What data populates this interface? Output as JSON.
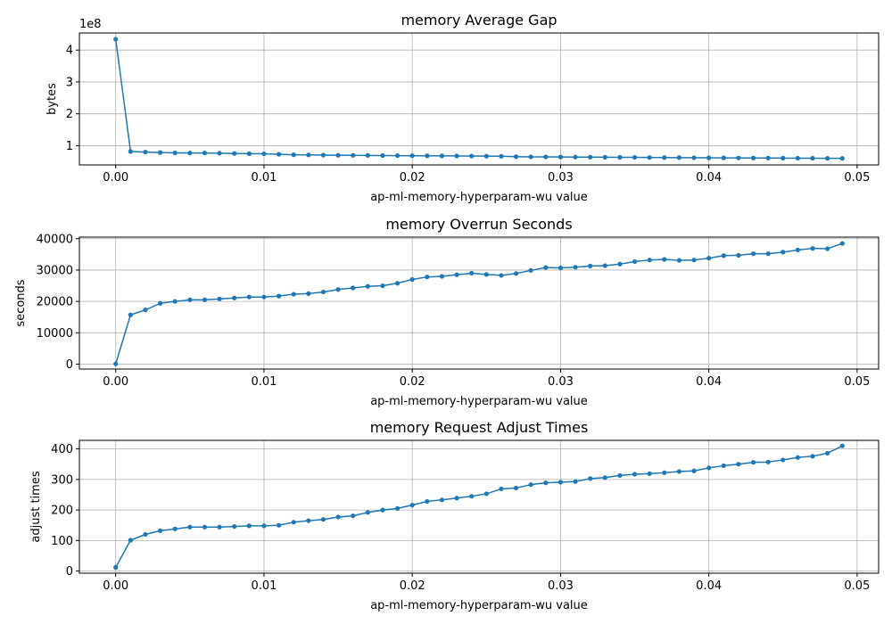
{
  "colors": {
    "series": "#1f77b4",
    "grid": "#b0b0b0"
  },
  "chart_data": [
    {
      "type": "line",
      "title": "memory Average Gap",
      "xlabel": "ap-ml-memory-hyperparam-wu value",
      "ylabel": "bytes",
      "y_offset_label": "1e8",
      "xlim": [
        -0.00245,
        0.05145
      ],
      "ylim": [
        39700000.0,
        453600000.0
      ],
      "xticks": [
        0.0,
        0.01,
        0.02,
        0.03,
        0.04,
        0.05
      ],
      "xtick_labels": [
        "0.00",
        "0.01",
        "0.02",
        "0.03",
        "0.04",
        "0.05"
      ],
      "yticks": [
        100000000.0,
        200000000.0,
        300000000.0,
        400000000.0
      ],
      "ytick_labels": [
        "1",
        "2",
        "3",
        "4"
      ],
      "grid": true,
      "x": [
        0.0,
        0.001,
        0.002,
        0.003,
        0.004,
        0.005,
        0.006,
        0.007,
        0.008,
        0.009,
        0.01,
        0.011,
        0.012,
        0.013,
        0.014,
        0.015,
        0.016,
        0.017,
        0.018,
        0.019,
        0.02,
        0.021,
        0.022,
        0.023,
        0.024,
        0.025,
        0.026,
        0.027,
        0.028,
        0.029,
        0.03,
        0.031,
        0.032,
        0.033,
        0.034,
        0.035,
        0.036,
        0.037,
        0.038,
        0.039,
        0.04,
        0.041,
        0.042,
        0.043,
        0.044,
        0.045,
        0.046,
        0.047,
        0.048,
        0.049
      ],
      "series": [
        {
          "values": [
            434000000,
            82000000,
            80000000,
            78500000,
            77500000,
            77000000,
            77000000,
            76500000,
            75500000,
            75000000,
            74500000,
            73000000,
            71500000,
            71000000,
            70500000,
            70000000,
            69800000,
            69500000,
            69000000,
            68800000,
            68500000,
            68300000,
            68000000,
            67800000,
            67500000,
            67200000,
            66800000,
            65500000,
            65000000,
            64800000,
            64500000,
            64300000,
            64000000,
            63800000,
            63500000,
            63300000,
            63000000,
            62800000,
            62500000,
            62300000,
            62000000,
            61800000,
            61600000,
            61400000,
            61200000,
            61000000,
            60800000,
            60600000,
            60400000,
            60200000
          ]
        }
      ]
    },
    {
      "type": "line",
      "title": "memory Overrun Seconds",
      "xlabel": "ap-ml-memory-hyperparam-wu value",
      "ylabel": "seconds",
      "xlim": [
        -0.00245,
        0.05145
      ],
      "ylim": [
        -1560,
        40500
      ],
      "xticks": [
        0.0,
        0.01,
        0.02,
        0.03,
        0.04,
        0.05
      ],
      "xtick_labels": [
        "0.00",
        "0.01",
        "0.02",
        "0.03",
        "0.04",
        "0.05"
      ],
      "yticks": [
        0,
        10000,
        20000,
        30000,
        40000
      ],
      "ytick_labels": [
        "0",
        "10000",
        "20000",
        "30000",
        "40000"
      ],
      "grid": true,
      "x": [
        0.0,
        0.001,
        0.002,
        0.003,
        0.004,
        0.005,
        0.006,
        0.007,
        0.008,
        0.009,
        0.01,
        0.011,
        0.012,
        0.013,
        0.014,
        0.015,
        0.016,
        0.017,
        0.018,
        0.019,
        0.02,
        0.021,
        0.022,
        0.023,
        0.024,
        0.025,
        0.026,
        0.027,
        0.028,
        0.029,
        0.03,
        0.031,
        0.032,
        0.033,
        0.034,
        0.035,
        0.036,
        0.037,
        0.038,
        0.039,
        0.04,
        0.041,
        0.042,
        0.043,
        0.044,
        0.045,
        0.046,
        0.047,
        0.048,
        0.049
      ],
      "series": [
        {
          "values": [
            100,
            15700,
            17300,
            19400,
            20000,
            20500,
            20500,
            20800,
            21100,
            21400,
            21400,
            21700,
            22300,
            22500,
            23000,
            23800,
            24300,
            24800,
            25000,
            25800,
            27000,
            27800,
            28000,
            28500,
            29000,
            28600,
            28300,
            28900,
            29900,
            30800,
            30700,
            30900,
            31300,
            31400,
            31900,
            32700,
            33200,
            33400,
            33100,
            33200,
            33800,
            34600,
            34700,
            35200,
            35200,
            35700,
            36400,
            36900,
            36800,
            38500
          ]
        }
      ]
    },
    {
      "type": "line",
      "title": "memory Request Adjust Times",
      "xlabel": "ap-ml-memory-hyperparam-wu value",
      "ylabel": "adjust times",
      "xlim": [
        -0.00245,
        0.05145
      ],
      "ylim": [
        -7,
        428
      ],
      "xticks": [
        0.0,
        0.01,
        0.02,
        0.03,
        0.04,
        0.05
      ],
      "xtick_labels": [
        "0.00",
        "0.01",
        "0.02",
        "0.03",
        "0.04",
        "0.05"
      ],
      "yticks": [
        0,
        100,
        200,
        300,
        400
      ],
      "ytick_labels": [
        "0",
        "100",
        "200",
        "300",
        "400"
      ],
      "grid": true,
      "x": [
        0.0,
        0.001,
        0.002,
        0.003,
        0.004,
        0.005,
        0.006,
        0.007,
        0.008,
        0.009,
        0.01,
        0.011,
        0.012,
        0.013,
        0.014,
        0.015,
        0.016,
        0.017,
        0.018,
        0.019,
        0.02,
        0.021,
        0.022,
        0.023,
        0.024,
        0.025,
        0.026,
        0.027,
        0.028,
        0.029,
        0.03,
        0.031,
        0.032,
        0.033,
        0.034,
        0.035,
        0.036,
        0.037,
        0.038,
        0.039,
        0.04,
        0.041,
        0.042,
        0.043,
        0.044,
        0.045,
        0.046,
        0.047,
        0.048,
        0.049
      ],
      "series": [
        {
          "values": [
            12,
            101,
            120,
            132,
            138,
            144,
            144,
            144,
            146,
            148,
            148,
            150,
            160,
            165,
            169,
            177,
            181,
            192,
            200,
            205,
            216,
            228,
            233,
            239,
            245,
            253,
            269,
            272,
            283,
            289,
            291,
            293,
            303,
            306,
            313,
            317,
            319,
            322,
            326,
            328,
            338,
            345,
            350,
            356,
            357,
            364,
            372,
            376,
            386,
            410
          ]
        }
      ]
    }
  ]
}
